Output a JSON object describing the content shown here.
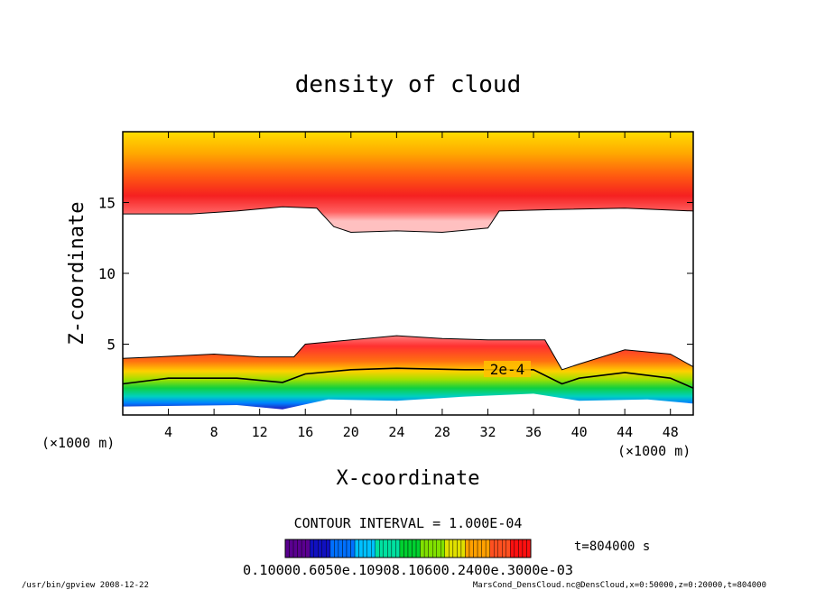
{
  "chart_data": {
    "type": "heatmap",
    "title": "density of cloud",
    "xlabel": "X-coordinate",
    "ylabel": "Z-coordinate",
    "x_unit": "(×1000 m)",
    "y_unit": "(×1000 m)",
    "xlim": [
      0,
      50
    ],
    "ylim": [
      0,
      20
    ],
    "xticks": [
      4,
      8,
      12,
      16,
      20,
      24,
      28,
      32,
      36,
      40,
      44,
      48
    ],
    "yticks": [
      5,
      10,
      15
    ],
    "contour_interval_text": "CONTOUR INTERVAL = 1.000E-04",
    "time_text": "t=804000 s",
    "contour_label": "2e-4",
    "colorbar_labels": "0.10000.6050e.10908.10600.2400e.3000e-03",
    "colorbar_colors": [
      "#5a0090",
      "#1010c0",
      "#0070ff",
      "#00c0ff",
      "#00e0a0",
      "#00d030",
      "#80e000",
      "#e0e000",
      "#ffa000",
      "#ff5020",
      "#ff1010"
    ],
    "upper_layer": {
      "lower_edge_z": [
        [
          0,
          14.2
        ],
        [
          6,
          14.2
        ],
        [
          10,
          14.4
        ],
        [
          14,
          14.7
        ],
        [
          17,
          14.6
        ],
        [
          18.5,
          13.3
        ],
        [
          20,
          12.9
        ],
        [
          24,
          13.0
        ],
        [
          28,
          12.9
        ],
        [
          32,
          13.2
        ],
        [
          33,
          14.4
        ],
        [
          38,
          14.5
        ],
        [
          44,
          14.6
        ],
        [
          50,
          14.4
        ]
      ],
      "peak_z": 15.8
    },
    "lower_layer": {
      "upper_edge_z": [
        [
          0,
          4.0
        ],
        [
          3,
          4.1
        ],
        [
          8,
          4.3
        ],
        [
          12,
          4.1
        ],
        [
          15,
          4.1
        ],
        [
          16,
          5.0
        ],
        [
          20,
          5.3
        ],
        [
          24,
          5.6
        ],
        [
          28,
          5.4
        ],
        [
          32,
          5.3
        ],
        [
          37,
          5.3
        ],
        [
          38.5,
          3.2
        ],
        [
          40,
          3.6
        ],
        [
          44,
          4.6
        ],
        [
          48,
          4.3
        ],
        [
          50,
          3.4
        ]
      ],
      "bottom_z": [
        [
          0,
          0.6
        ],
        [
          10,
          0.7
        ],
        [
          14,
          0.4
        ],
        [
          18,
          1.1
        ],
        [
          24,
          1.0
        ],
        [
          30,
          1.3
        ],
        [
          36,
          1.5
        ],
        [
          40,
          1.0
        ],
        [
          46,
          1.1
        ],
        [
          50,
          0.8
        ]
      ]
    },
    "contour_2e4_z": [
      [
        0,
        2.2
      ],
      [
        4,
        2.6
      ],
      [
        10,
        2.6
      ],
      [
        14,
        2.3
      ],
      [
        16,
        2.9
      ],
      [
        20,
        3.2
      ],
      [
        24,
        3.3
      ],
      [
        30,
        3.2
      ],
      [
        36,
        3.2
      ],
      [
        38.5,
        2.2
      ],
      [
        40,
        2.6
      ],
      [
        44,
        3.0
      ],
      [
        48,
        2.6
      ],
      [
        50,
        1.9
      ]
    ]
  },
  "footer": {
    "left": "/usr/bin/gpview   2008-12-22",
    "right": "MarsCond_DensCloud.nc@DensCloud,x=0:50000,z=0:20000,t=804000"
  }
}
